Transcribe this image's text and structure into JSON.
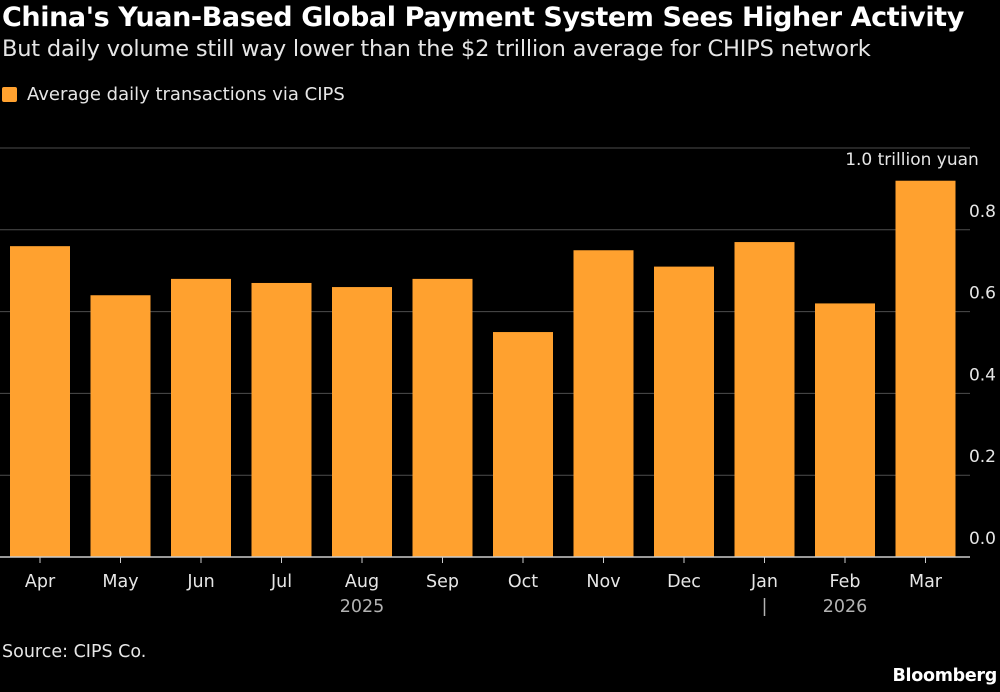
{
  "header": {
    "title": "China's Yuan-Based Global Payment System Sees Higher Activity",
    "subtitle": "But daily volume still way lower than the $2 trillion average for CHIPS network"
  },
  "legend": {
    "label": "Average daily transactions via CIPS"
  },
  "footer": {
    "source": "Source: CIPS Co.",
    "brand": "Bloomberg"
  },
  "colors": {
    "bar": "#FFA12F",
    "background": "#000000",
    "grid": "#4d4d4d"
  },
  "chart_data": {
    "type": "bar",
    "title": "China's Yuan-Based Global Payment System Sees Higher Activity",
    "subtitle": "But daily volume still way lower than the $2 trillion average for CHIPS network",
    "categories": [
      "Apr",
      "May",
      "Jun",
      "Jul",
      "Aug",
      "Sep",
      "Oct",
      "Nov",
      "Dec",
      "Jan",
      "Feb",
      "Mar"
    ],
    "series": [
      {
        "name": "Average daily transactions via CIPS",
        "values": [
          0.76,
          0.64,
          0.68,
          0.67,
          0.66,
          0.68,
          0.55,
          0.75,
          0.71,
          0.77,
          0.62,
          0.92
        ]
      }
    ],
    "year_labels": [
      {
        "label": "2025",
        "start_index": 0,
        "end_index": 8
      },
      {
        "label": "2026",
        "start_index": 9,
        "end_index": 11
      }
    ],
    "ylim": [
      0,
      1.0
    ],
    "yticks": [
      0.0,
      0.2,
      0.4,
      0.6,
      0.8
    ],
    "ytick_labels": [
      "0.0",
      "0.2",
      "0.4",
      "0.6",
      "0.8"
    ],
    "top_label": "1.0 trillion yuan",
    "xlabel": "",
    "ylabel": "trillion yuan",
    "grid": true,
    "legend_position": "top-left"
  }
}
